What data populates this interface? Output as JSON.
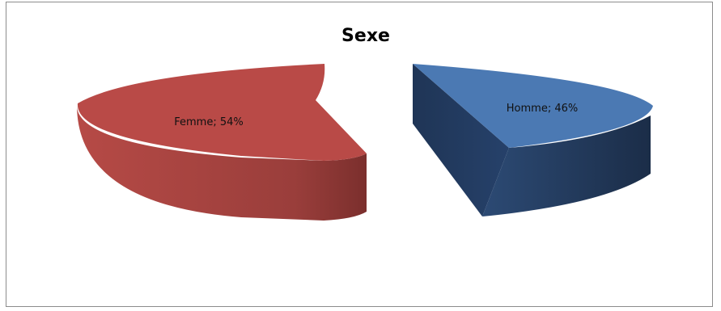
{
  "chart_data": {
    "type": "pie",
    "title": "Sexe",
    "slices": [
      {
        "label": "Femme",
        "value": 54,
        "display": "Femme; 54%",
        "color": "#b94a47",
        "side_color": "#8e3a37"
      },
      {
        "label": "Homme",
        "value": 46,
        "display": "Homme; 46%",
        "color": "#4b79b3",
        "side_color": "#243a5c"
      }
    ],
    "style": "3d-exploded",
    "legend": "none"
  }
}
